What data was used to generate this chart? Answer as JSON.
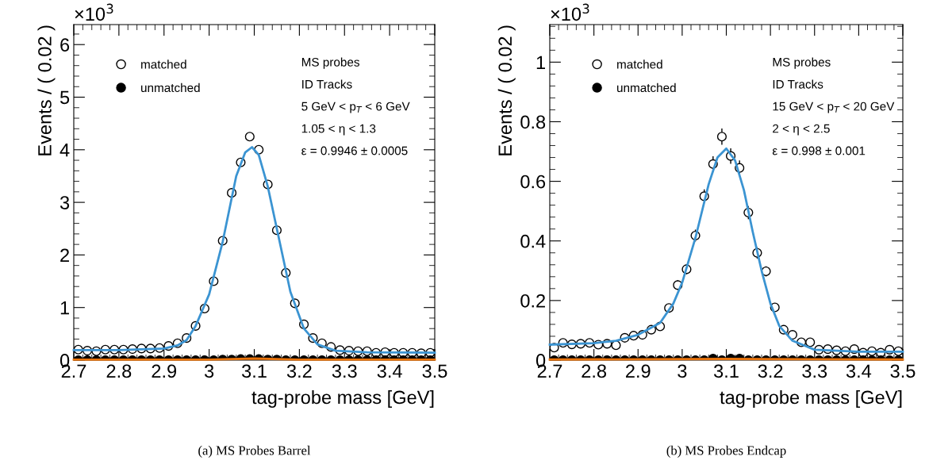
{
  "chart_data": [
    {
      "type": "scatter",
      "ylabel": "Events / ( 0.02 )",
      "xlabel": "tag-probe mass [GeV]",
      "xlim": [
        2.7,
        3.5
      ],
      "xticks": [
        2.7,
        2.8,
        2.9,
        3,
        3.1,
        3.2,
        3.3,
        3.4,
        3.5
      ],
      "ylim": [
        0,
        6.38
      ],
      "yticks": [
        0,
        1,
        2,
        3,
        4,
        5,
        6
      ],
      "legend": "top left",
      "grid": false,
      "x": [
        2.71,
        2.73,
        2.75,
        2.77,
        2.79,
        2.81,
        2.83,
        2.85,
        2.87,
        2.89,
        2.91,
        2.93,
        2.95,
        2.97,
        2.99,
        3.01,
        3.03,
        3.05,
        3.07,
        3.09,
        3.11,
        3.13,
        3.15,
        3.17,
        3.19,
        3.21,
        3.23,
        3.25,
        3.27,
        3.29,
        3.31,
        3.33,
        3.35,
        3.37,
        3.39,
        3.41,
        3.43,
        3.45,
        3.47,
        3.49
      ],
      "series": [
        {
          "name": "matched",
          "color": "#000000",
          "marker": "circle",
          "values": [
            0.2,
            0.18,
            0.17,
            0.2,
            0.2,
            0.2,
            0.21,
            0.22,
            0.22,
            0.23,
            0.27,
            0.32,
            0.42,
            0.65,
            0.98,
            1.5,
            2.27,
            3.18,
            3.76,
            4.25,
            4.0,
            3.34,
            2.47,
            1.66,
            1.08,
            0.68,
            0.42,
            0.32,
            0.25,
            0.19,
            0.18,
            0.17,
            0.17,
            0.14,
            0.15,
            0.14,
            0.14,
            0.14,
            0.13,
            0.14
          ]
        },
        {
          "name": "unmatched",
          "color": "#000000",
          "marker": "circle",
          "values": [
            0,
            0,
            0,
            0,
            0,
            0,
            0,
            0,
            0,
            0,
            0,
            0,
            0,
            0,
            0,
            0,
            0.01,
            0.01,
            0.02,
            0.02,
            0.02,
            0.01,
            0.01,
            0,
            0,
            0,
            0,
            0,
            0,
            0,
            0,
            0,
            0,
            0,
            0,
            0,
            0,
            0,
            0,
            0
          ]
        },
        {
          "type": "line",
          "color": "#3b94d2",
          "x": [
            2.7,
            2.8,
            2.9,
            2.93,
            2.95,
            2.97,
            3.0,
            3.03,
            3.06,
            3.08,
            3.095,
            3.11,
            3.13,
            3.15,
            3.18,
            3.21,
            3.24,
            3.28,
            3.35,
            3.5
          ],
          "values": [
            0.19,
            0.19,
            0.22,
            0.28,
            0.38,
            0.65,
            1.25,
            2.25,
            3.5,
            3.95,
            4.05,
            3.9,
            3.3,
            2.5,
            1.3,
            0.6,
            0.3,
            0.18,
            0.15,
            0.14
          ]
        },
        {
          "type": "line",
          "color": "#e8730c",
          "x": [
            2.7,
            3.0,
            3.1,
            3.2,
            3.5
          ],
          "values": [
            0.01,
            0.01,
            0.03,
            0.01,
            0.01
          ]
        }
      ],
      "annotations": [
        "×10$^{3}$",
        "MS probes",
        "ID Tracks",
        "5 GeV < p$_{T}$ < 6 GeV",
        "1.05 < η < 1.3",
        "ε = 0.9946 ± 0.0005",
        "(a) MS Probes Barrel"
      ]
    },
    {
      "type": "scatter",
      "ylabel": "Events / ( 0.02 )",
      "xlabel": "tag-probe mass [GeV]",
      "xlim": [
        2.7,
        3.5
      ],
      "xticks": [
        2.7,
        2.8,
        2.9,
        3,
        3.1,
        3.2,
        3.3,
        3.4,
        3.5
      ],
      "ylim": [
        0,
        1.126
      ],
      "yticks": [
        0,
        0.2,
        0.4,
        0.6,
        0.8,
        1
      ],
      "legend": "top left",
      "grid": false,
      "x": [
        2.71,
        2.73,
        2.75,
        2.77,
        2.79,
        2.81,
        2.83,
        2.85,
        2.87,
        2.89,
        2.91,
        2.93,
        2.95,
        2.97,
        2.99,
        3.01,
        3.03,
        3.05,
        3.07,
        3.09,
        3.11,
        3.13,
        3.15,
        3.17,
        3.19,
        3.21,
        3.23,
        3.25,
        3.27,
        3.29,
        3.31,
        3.33,
        3.35,
        3.37,
        3.39,
        3.41,
        3.43,
        3.45,
        3.47,
        3.49
      ],
      "series": [
        {
          "name": "matched",
          "color": "#000000",
          "marker": "circle",
          "values": [
            0.042,
            0.058,
            0.053,
            0.055,
            0.058,
            0.052,
            0.055,
            0.05,
            0.075,
            0.082,
            0.085,
            0.102,
            0.113,
            0.175,
            0.252,
            0.305,
            0.418,
            0.55,
            0.658,
            0.75,
            0.685,
            0.645,
            0.495,
            0.36,
            0.298,
            0.177,
            0.102,
            0.085,
            0.06,
            0.06,
            0.035,
            0.037,
            0.033,
            0.03,
            0.037,
            0.025,
            0.03,
            0.025,
            0.035,
            0.03
          ],
          "errors": [
            0.007,
            0.008,
            0.007,
            0.007,
            0.008,
            0.007,
            0.007,
            0.007,
            0.009,
            0.009,
            0.009,
            0.01,
            0.011,
            0.013,
            0.016,
            0.017,
            0.02,
            0.023,
            0.026,
            0.027,
            0.026,
            0.025,
            0.022,
            0.019,
            0.017,
            0.013,
            0.01,
            0.009,
            0.008,
            0.008,
            0.006,
            0.006,
            0.006,
            0.005,
            0.006,
            0.005,
            0.005,
            0.005,
            0.006,
            0.005
          ]
        },
        {
          "name": "unmatched",
          "color": "#000000",
          "marker": "circle",
          "values": [
            0,
            0,
            0,
            0,
            0,
            0,
            0,
            0,
            0,
            0,
            0,
            0,
            0,
            0,
            0,
            0,
            0,
            0,
            0.005,
            0,
            0.005,
            0.005,
            0,
            0,
            0,
            0,
            0,
            0,
            0,
            0,
            0,
            0,
            0,
            0,
            0,
            0,
            0,
            0,
            0,
            0
          ]
        },
        {
          "type": "line",
          "color": "#3b94d2",
          "x": [
            2.7,
            2.8,
            2.85,
            2.9,
            2.95,
            2.98,
            3.0,
            3.03,
            3.06,
            3.08,
            3.1,
            3.12,
            3.14,
            3.16,
            3.18,
            3.2,
            3.22,
            3.25,
            3.3,
            3.4,
            3.5
          ],
          "values": [
            0.052,
            0.057,
            0.065,
            0.085,
            0.125,
            0.19,
            0.26,
            0.41,
            0.59,
            0.68,
            0.71,
            0.67,
            0.57,
            0.43,
            0.3,
            0.19,
            0.115,
            0.065,
            0.035,
            0.028,
            0.028
          ]
        },
        {
          "type": "line",
          "color": "#e8730c",
          "x": [
            2.7,
            3.1,
            3.5
          ],
          "values": [
            0.002,
            0.004,
            0.002
          ]
        }
      ],
      "annotations": [
        "×10$^{3}$",
        "MS probes",
        "ID Tracks",
        "15 GeV < p$_{T}$ < 20 GeV",
        "2 < η < 2.5",
        "ε = 0.998 ± 0.001",
        "(b) MS Probes Endcap"
      ]
    }
  ]
}
